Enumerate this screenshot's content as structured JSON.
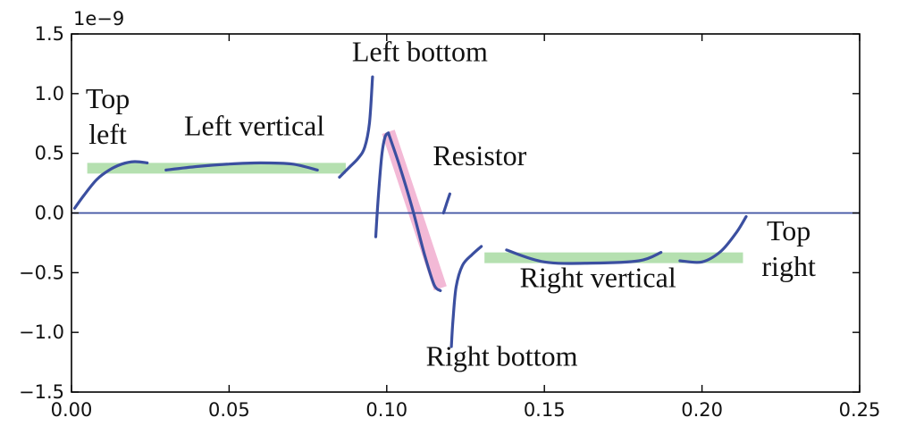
{
  "chart_data": {
    "type": "line",
    "title": "",
    "xlabel": "",
    "ylabel": "",
    "x_scale_multiplier": "",
    "y_scale_multiplier": "1e−9",
    "xlim": [
      0.0,
      0.25
    ],
    "ylim": [
      -1.5,
      1.5
    ],
    "x_ticks": [
      0.0,
      0.05,
      0.1,
      0.15,
      0.2,
      0.25
    ],
    "x_tick_labels": [
      "0.00",
      "0.05",
      "0.10",
      "0.15",
      "0.20",
      "0.25"
    ],
    "y_ticks": [
      1.5,
      1.0,
      0.5,
      0.0,
      -0.5,
      -1.0,
      -1.5
    ],
    "y_tick_labels": [
      "1.5",
      "1.0",
      "0.5",
      "0.0",
      "−0.5",
      "−1.0",
      "−1.5"
    ],
    "grid": false,
    "reference_line": {
      "y": 0.0,
      "color": "#3b4fa0"
    },
    "colors": {
      "series": "#3b4fa0",
      "vertical_band": "#b5e0b0",
      "resistor_band": "#f0a8cc"
    },
    "series": [
      {
        "points": [
          [
            0.001,
            0.04
          ],
          [
            0.004,
            0.15
          ],
          [
            0.008,
            0.28
          ],
          [
            0.012,
            0.36
          ],
          [
            0.016,
            0.41
          ],
          [
            0.02,
            0.43
          ],
          [
            0.024,
            0.42
          ]
        ]
      },
      {
        "points": [
          [
            0.03,
            0.36
          ],
          [
            0.04,
            0.39
          ],
          [
            0.05,
            0.41
          ],
          [
            0.06,
            0.42
          ],
          [
            0.07,
            0.41
          ],
          [
            0.078,
            0.36
          ]
        ]
      },
      {
        "points": [
          [
            0.085,
            0.3
          ],
          [
            0.088,
            0.38
          ],
          [
            0.091,
            0.46
          ],
          [
            0.093,
            0.55
          ],
          [
            0.0945,
            0.75
          ],
          [
            0.0955,
            1.14
          ]
        ]
      },
      {
        "points": [
          [
            0.0965,
            -0.2
          ],
          [
            0.0975,
            0.2
          ],
          [
            0.0985,
            0.5
          ],
          [
            0.0995,
            0.64
          ],
          [
            0.1005,
            0.67
          ]
        ]
      },
      {
        "points": [
          [
            0.1005,
            0.67
          ],
          [
            0.104,
            0.4
          ],
          [
            0.108,
            0.05
          ],
          [
            0.112,
            -0.35
          ],
          [
            0.115,
            -0.6
          ],
          [
            0.117,
            -0.65
          ]
        ]
      },
      {
        "points": [
          [
            0.118,
            0.0
          ],
          [
            0.119,
            0.08
          ],
          [
            0.12,
            0.16
          ]
        ]
      },
      {
        "points": [
          [
            0.1205,
            -1.12
          ],
          [
            0.121,
            -0.9
          ],
          [
            0.122,
            -0.62
          ],
          [
            0.124,
            -0.44
          ],
          [
            0.127,
            -0.35
          ],
          [
            0.13,
            -0.28
          ]
        ]
      },
      {
        "points": [
          [
            0.138,
            -0.31
          ],
          [
            0.15,
            -0.41
          ],
          [
            0.165,
            -0.42
          ],
          [
            0.18,
            -0.4
          ],
          [
            0.187,
            -0.33
          ]
        ]
      },
      {
        "points": [
          [
            0.193,
            -0.4
          ],
          [
            0.2,
            -0.41
          ],
          [
            0.206,
            -0.32
          ],
          [
            0.211,
            -0.16
          ],
          [
            0.214,
            -0.03
          ]
        ]
      }
    ],
    "bands": [
      {
        "kind": "vertical",
        "x": [
          0.005,
          0.087
        ],
        "y": [
          0.375,
          0.375
        ]
      },
      {
        "kind": "vertical",
        "x": [
          0.131,
          0.213
        ],
        "y": [
          -0.375,
          -0.375
        ]
      },
      {
        "kind": "resistor",
        "x": [
          0.1005,
          0.117
        ],
        "y": [
          0.68,
          -0.63
        ]
      }
    ],
    "annotations": [
      {
        "lines": [
          "Top",
          "left"
        ],
        "x": 0.0115,
        "y": 0.88
      },
      {
        "lines": [
          "Left vertical"
        ],
        "x": 0.058,
        "y": 0.65
      },
      {
        "lines": [
          "Left bottom"
        ],
        "x": 0.1105,
        "y": 1.27
      },
      {
        "lines": [
          "Resistor"
        ],
        "x": 0.1295,
        "y": 0.4
      },
      {
        "lines": [
          "Top",
          "right"
        ],
        "x": 0.2275,
        "y": -0.23
      },
      {
        "lines": [
          "Right vertical"
        ],
        "x": 0.167,
        "y": -0.62
      },
      {
        "lines": [
          "Right bottom"
        ],
        "x": 0.1365,
        "y": -1.28
      }
    ]
  }
}
